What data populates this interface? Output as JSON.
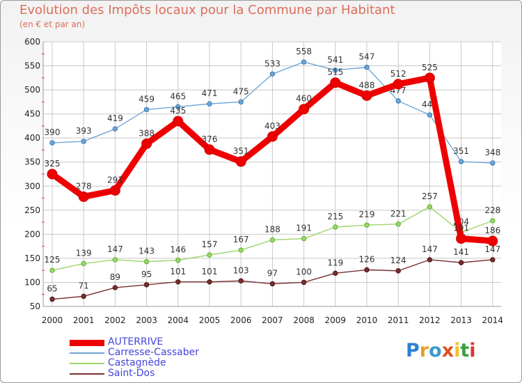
{
  "title": "Evolution des Impôts locaux pour la Commune par Habitant",
  "subtitle": "(en € et par an)",
  "brand": "Proxiti",
  "colors": {
    "title": "#dd6d5a",
    "legend_text": "#4444dd",
    "grid": "#c8c8c8",
    "axis_text": "#222222",
    "label_text": "#333333"
  },
  "chart_data": {
    "type": "line",
    "title": "Evolution des Impôts locaux pour la Commune par Habitant",
    "subtitle": "(en € et par an)",
    "xlabel": "",
    "ylabel": "",
    "ylim": [
      50,
      600
    ],
    "yticks": [
      50,
      100,
      150,
      200,
      250,
      300,
      350,
      400,
      450,
      500,
      550,
      600
    ],
    "grid": true,
    "legend_position": "bottom-left",
    "categories": [
      "2000",
      "2001",
      "2002",
      "2003",
      "2004",
      "2005",
      "2006",
      "2007",
      "2008",
      "2009",
      "2010",
      "2011",
      "2012",
      "2013",
      "2014"
    ],
    "series": [
      {
        "name": "AUTERRIVE",
        "color": "#ee0000",
        "emphasis": true,
        "values": [
          325,
          278,
          291,
          388,
          435,
          376,
          351,
          403,
          460,
          515,
          488,
          512,
          525,
          191,
          186
        ]
      },
      {
        "name": "Carresse-Cassaber",
        "color": "#6fa7d8",
        "emphasis": false,
        "values": [
          390,
          393,
          419,
          459,
          465,
          471,
          475,
          533,
          558,
          541,
          547,
          477,
          448,
          351,
          348
        ]
      },
      {
        "name": "Castagnède",
        "color": "#9ad66a",
        "emphasis": false,
        "values": [
          125,
          139,
          147,
          143,
          146,
          157,
          167,
          188,
          191,
          215,
          219,
          221,
          257,
          204,
          228
        ]
      },
      {
        "name": "Saint-Dos",
        "color": "#7a2f2f",
        "emphasis": false,
        "values": [
          65,
          71,
          89,
          95,
          101,
          101,
          103,
          97,
          100,
          119,
          126,
          124,
          147,
          141,
          147
        ]
      }
    ]
  }
}
